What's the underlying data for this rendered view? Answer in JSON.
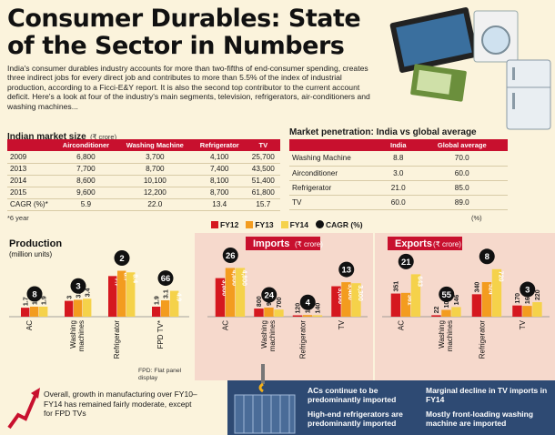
{
  "title": "Consumer Durables: State of the Sector in Numbers",
  "intro": "India's consumer durables industry accounts for more than two-fifths of end-consumer spending, creates three indirect jobs for every direct job and contributes to more than 5.5% of the index of industrial production, according to a Ficci-E&Y report. It is also the second top contributor to the current account deficit. Here's a look at four of the industry's main segments, television, refrigerators, air-conditioners and washing machines...",
  "market_size": {
    "heading": "Indian market size",
    "unit": "(₹ crore)",
    "columns": [
      "",
      "Airconditioner",
      "Washing Machine",
      "Refrigerator",
      "TV"
    ],
    "rows": [
      [
        "2009",
        "6,800",
        "3,700",
        "4,100",
        "25,700"
      ],
      [
        "2013",
        "7,700",
        "8,700",
        "7,400",
        "43,500"
      ],
      [
        "2014",
        "8,600",
        "10,100",
        "8,100",
        "51,400"
      ],
      [
        "2015",
        "9,600",
        "12,200",
        "8,700",
        "61,800"
      ],
      [
        "CAGR (%)*",
        "5.9",
        "22.0",
        "13.4",
        "15.7"
      ]
    ],
    "footnote": "*6 year"
  },
  "penetration": {
    "heading": "Market penetration: India vs global average",
    "columns": [
      "",
      "India",
      "Global average"
    ],
    "rows": [
      [
        "Washing Machine",
        "8.8",
        "70.0"
      ],
      [
        "Airconditioner",
        "3.0",
        "60.0"
      ],
      [
        "Refrigerator",
        "21.0",
        "85.0"
      ],
      [
        "TV",
        "60.0",
        "89.0"
      ]
    ],
    "unit_note": "(%)"
  },
  "legend": {
    "fy12": "FY12",
    "fy13": "FY13",
    "fy14": "FY14",
    "cagr": "CAGR (%)",
    "colors": {
      "fy12": "#d5181f",
      "fy13": "#f39c1f",
      "fy14": "#f5d24a",
      "cagr": "#111111"
    }
  },
  "chart_data": [
    {
      "type": "bar",
      "title": "Production",
      "subtitle": "(million units)",
      "categories": [
        "AC",
        "Washing machines",
        "Refrigerator",
        "FPD TV*"
      ],
      "series": [
        {
          "name": "FY12",
          "values": [
            1.7,
            3.0,
            7.7,
            1.9
          ]
        },
        {
          "name": "FY13",
          "values": [
            1.9,
            3.2,
            8.7,
            3.1
          ]
        },
        {
          "name": "FY14",
          "values": [
            1.9,
            3.4,
            8.4,
            4.9
          ]
        }
      ],
      "cagr": [
        8,
        3,
        2,
        66
      ],
      "ylim": [
        0,
        10
      ],
      "footnote": "FPD: Flat panel display"
    },
    {
      "type": "bar",
      "title": "Imports",
      "unit": "(₹ crore)",
      "categories": [
        "AC",
        "Washing machines",
        "Refrigerator",
        "TV"
      ],
      "series": [
        {
          "name": "FY12",
          "values": [
            3800,
            800,
            120,
            3000
          ]
        },
        {
          "name": "FY13",
          "values": [
            4800,
            900,
            160,
            3400
          ]
        },
        {
          "name": "FY14",
          "values": [
            4800,
            700,
            140,
            3300
          ]
        }
      ],
      "cagr": [
        26,
        24,
        4,
        13
      ],
      "ylim": [
        0,
        5200
      ]
    },
    {
      "type": "bar",
      "title": "Exports",
      "unit": "(₹ crore)",
      "categories": [
        "AC",
        "Washing machines",
        "Refrigerator",
        "TV"
      ],
      "series": [
        {
          "name": "FY12",
          "values": [
            351,
            22,
            340,
            170
          ]
        },
        {
          "name": "FY13",
          "values": [
            361,
            103,
            524,
            164
          ]
        },
        {
          "name": "FY14",
          "values": [
            643,
            146,
            720,
            220
          ]
        }
      ],
      "cagr": [
        21,
        55,
        8,
        3
      ],
      "ylim": [
        0,
        800
      ]
    }
  ],
  "growth_note": "Overall, growth in manufacturing over FY10–FY14 has remained fairly moderate, except for FPD TVs",
  "bottom_notes": [
    "ACs continue to be predominantly imported",
    "High-end refrigerators are predominantly imported",
    "Marginal decline in TV imports in FY14",
    "Mostly front-loading washing machine are imported"
  ]
}
